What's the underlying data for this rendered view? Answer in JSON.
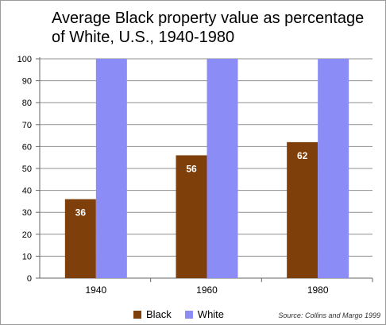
{
  "chart_data": {
    "type": "bar",
    "title": "Average Black property value as percentage of White, U.S., 1940-1980",
    "categories": [
      "1940",
      "1960",
      "1980"
    ],
    "series": [
      {
        "name": "Black",
        "values": [
          36,
          56,
          62
        ],
        "color": "#7f3f0a",
        "data_labels": [
          "36",
          "56",
          "62"
        ]
      },
      {
        "name": "White",
        "values": [
          100,
          100,
          100
        ],
        "color": "#8c8cf7"
      }
    ],
    "ylim": [
      0,
      100
    ],
    "yticks": [
      "0",
      "10",
      "20",
      "30",
      "40",
      "50",
      "60",
      "70",
      "80",
      "90",
      "100"
    ],
    "grid": true,
    "legend_position": "bottom",
    "source": "Source: Collins and Margo 1999"
  }
}
